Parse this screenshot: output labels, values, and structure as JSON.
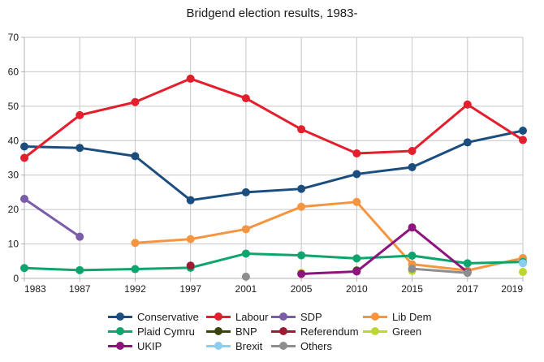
{
  "chart_data": {
    "type": "line",
    "title": "Bridgend election results, 1983-",
    "xlabel": "",
    "ylabel": "",
    "ylim": [
      0,
      70
    ],
    "y_ticks": [
      0,
      10,
      20,
      30,
      40,
      50,
      60,
      70
    ],
    "grid": true,
    "legend_position": "bottom",
    "categories": [
      "1983",
      "1987",
      "1992",
      "1997",
      "2001",
      "2005",
      "2010",
      "2015",
      "2017",
      "2019"
    ],
    "series": [
      {
        "name": "Conservative",
        "color": "#1b4e7e",
        "values": [
          38.3,
          37.9,
          35.5,
          22.7,
          25.0,
          26.0,
          30.3,
          32.3,
          39.5,
          42.9
        ]
      },
      {
        "name": "Labour",
        "color": "#e31e2d",
        "values": [
          35.0,
          47.4,
          51.2,
          58.0,
          52.3,
          43.3,
          36.3,
          37.0,
          50.5,
          40.2
        ]
      },
      {
        "name": "SDP",
        "color": "#7a5ca8",
        "values": [
          23.1,
          12.1,
          null,
          null,
          null,
          null,
          null,
          null,
          null,
          null
        ]
      },
      {
        "name": "Lib Dem",
        "color": "#f6953f",
        "values": [
          null,
          null,
          10.3,
          11.4,
          14.3,
          20.8,
          22.2,
          4.1,
          2.3,
          5.9
        ]
      },
      {
        "name": "Plaid Cymru",
        "color": "#0da56d",
        "values": [
          3.0,
          2.4,
          2.7,
          3.1,
          7.2,
          6.7,
          5.8,
          6.6,
          4.4,
          4.8
        ]
      },
      {
        "name": "BNP",
        "color": "#39430e",
        "values": [
          null,
          null,
          null,
          null,
          null,
          null,
          2.3,
          null,
          null,
          null
        ]
      },
      {
        "name": "Referendum",
        "color": "#9e1a34",
        "values": [
          null,
          null,
          null,
          3.7,
          null,
          null,
          null,
          null,
          null,
          null
        ]
      },
      {
        "name": "Green",
        "color": "#bed730",
        "values": [
          null,
          null,
          null,
          null,
          null,
          1.6,
          null,
          2.2,
          null,
          1.9
        ]
      },
      {
        "name": "UKIP",
        "color": "#8d137d",
        "values": [
          null,
          null,
          null,
          null,
          null,
          1.3,
          2.0,
          14.8,
          1.8,
          null
        ]
      },
      {
        "name": "Brexit",
        "color": "#8ecdf2",
        "values": [
          null,
          null,
          null,
          null,
          null,
          null,
          null,
          null,
          null,
          4.4
        ]
      },
      {
        "name": "Others",
        "color": "#8e8e8e",
        "values": [
          null,
          null,
          null,
          null,
          0.5,
          null,
          null,
          2.8,
          1.6,
          null
        ]
      }
    ],
    "style": {
      "grid_color": "#c6c6c6",
      "axis_color": "#b3b3b3",
      "text_color": "#1a1a1a",
      "background": "#ffffff"
    }
  }
}
